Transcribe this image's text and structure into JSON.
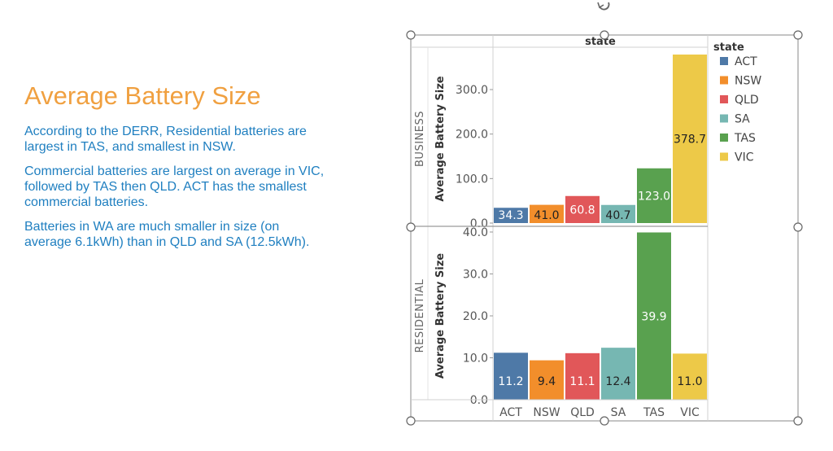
{
  "slide": {
    "title": "Average Battery Size",
    "paragraphs": [
      "According to the DERR, Residential batteries are largest in TAS, and smallest in NSW.",
      "Commercial batteries are largest on average in VIC, followed by TAS then QLD. ACT has the smallest commercial batteries.",
      "Batteries in WA are much smaller in size (on average 6.1kWh) than in QLD and SA (12.5kWh)."
    ]
  },
  "chart_data": {
    "type": "bar",
    "column_header": "state",
    "legend_title": "state",
    "legend_position": "right",
    "categories": [
      "ACT",
      "NSW",
      "QLD",
      "SA",
      "TAS",
      "VIC"
    ],
    "colors": {
      "ACT": "#4e79a7",
      "NSW": "#f28e2b",
      "QLD": "#e15759",
      "SA": "#76b7b2",
      "TAS": "#59a14f",
      "VIC": "#edc948"
    },
    "ylabel": "Average Battery Size",
    "panels": [
      {
        "row_label": "BUSINESS",
        "values": [
          34.3,
          41.0,
          60.8,
          40.7,
          123.0,
          378.7
        ],
        "labels": [
          "34.3",
          "41.0",
          "60.8",
          "40.7",
          "123.0",
          "378.7"
        ],
        "ylim": [
          0,
          378.7
        ],
        "ticks": [
          0,
          100,
          200,
          300
        ],
        "tick_labels": [
          "0.0",
          "100.0",
          "200.0",
          "300.0"
        ]
      },
      {
        "row_label": "RESIDENTIAL",
        "values": [
          11.2,
          9.4,
          11.1,
          12.4,
          39.9,
          11.0
        ],
        "labels": [
          "11.2",
          "9.4",
          "11.1",
          "12.4",
          "39.9",
          "11.0"
        ],
        "ylim": [
          0,
          40
        ],
        "ticks": [
          0,
          10,
          20,
          30,
          40
        ],
        "tick_labels": [
          "0.0",
          "10.0",
          "20.0",
          "30.0",
          "40.0"
        ]
      }
    ],
    "grid": false
  }
}
